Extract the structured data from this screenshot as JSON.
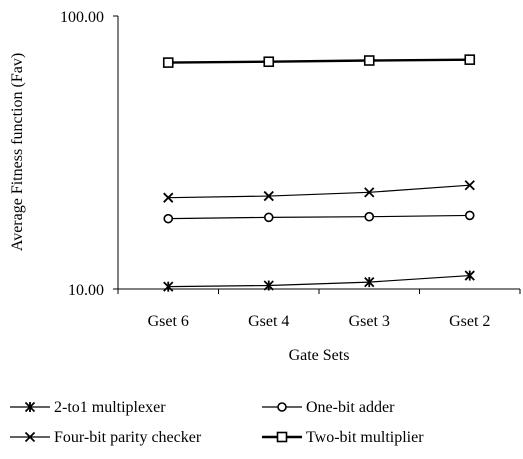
{
  "chart_data": {
    "type": "line",
    "xlabel": "Gate Sets",
    "ylabel": "Average Fitness function (Fav)",
    "categories": [
      "Gset 6",
      "Gset 4",
      "Gset 3",
      "Gset 2"
    ],
    "y_scale": "log",
    "ylim": [
      10,
      100
    ],
    "y_ticks": [
      "100.00",
      "10.00"
    ],
    "grid": false,
    "legend_position": "bottom",
    "series": [
      {
        "name": "2-to1 multiplexer",
        "marker": "asterisk",
        "values": [
          10.2,
          10.3,
          10.6,
          11.2
        ]
      },
      {
        "name": "One-bit adder",
        "marker": "circle",
        "values": [
          18.1,
          18.3,
          18.4,
          18.6
        ]
      },
      {
        "name": "Four-bit parity checker",
        "marker": "x",
        "values": [
          21.6,
          21.9,
          22.6,
          24.0
        ]
      },
      {
        "name": "Two-bit multiplier",
        "marker": "square",
        "values": [
          67.5,
          68.0,
          68.7,
          69.2
        ]
      }
    ],
    "line_color": "#000000"
  }
}
